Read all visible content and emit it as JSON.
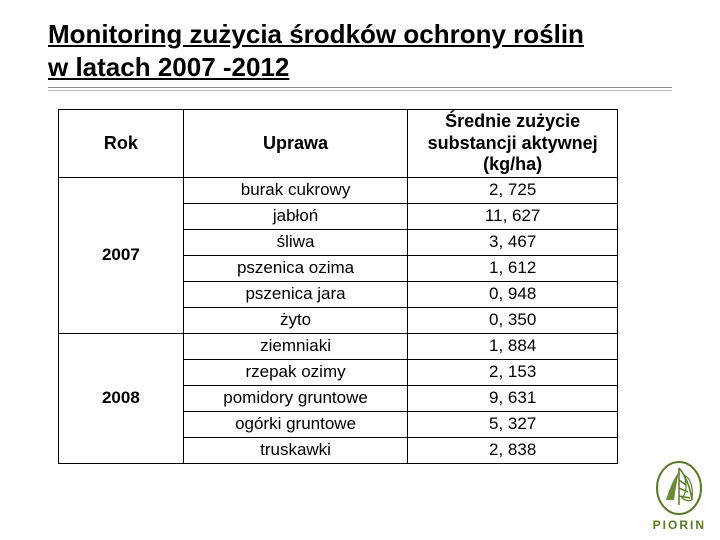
{
  "title_line1": "Monitoring zużycia środków ochrony roślin",
  "title_line2": "w latach 2007 -2012",
  "table": {
    "headers": {
      "rok": "Rok",
      "uprawa": "Uprawa",
      "val": "Średnie zużycie substancji aktywnej (kg/ha)"
    },
    "groups": [
      {
        "rok": "2007",
        "rows": [
          {
            "uprawa": "burak cukrowy",
            "val": "2, 725"
          },
          {
            "uprawa": "jabłoń",
            "val": "11, 627"
          },
          {
            "uprawa": "śliwa",
            "val": "3, 467"
          },
          {
            "uprawa": "pszenica ozima",
            "val": "1, 612"
          },
          {
            "uprawa": "pszenica jara",
            "val": "0, 948"
          },
          {
            "uprawa": "żyto",
            "val": "0, 350"
          }
        ]
      },
      {
        "rok": "2008",
        "rows": [
          {
            "uprawa": "ziemniaki",
            "val": "1, 884"
          },
          {
            "uprawa": "rzepak ozimy",
            "val": "2, 153"
          },
          {
            "uprawa": "pomidory gruntowe",
            "val": "9, 631"
          },
          {
            "uprawa": "ogórki gruntowe",
            "val": "5, 327"
          },
          {
            "uprawa": "truskawki",
            "val": "2, 838"
          }
        ]
      }
    ]
  },
  "logo": {
    "text": "PIORIN",
    "stroke": "#5a7a2a",
    "fill": "#6b8a33"
  }
}
